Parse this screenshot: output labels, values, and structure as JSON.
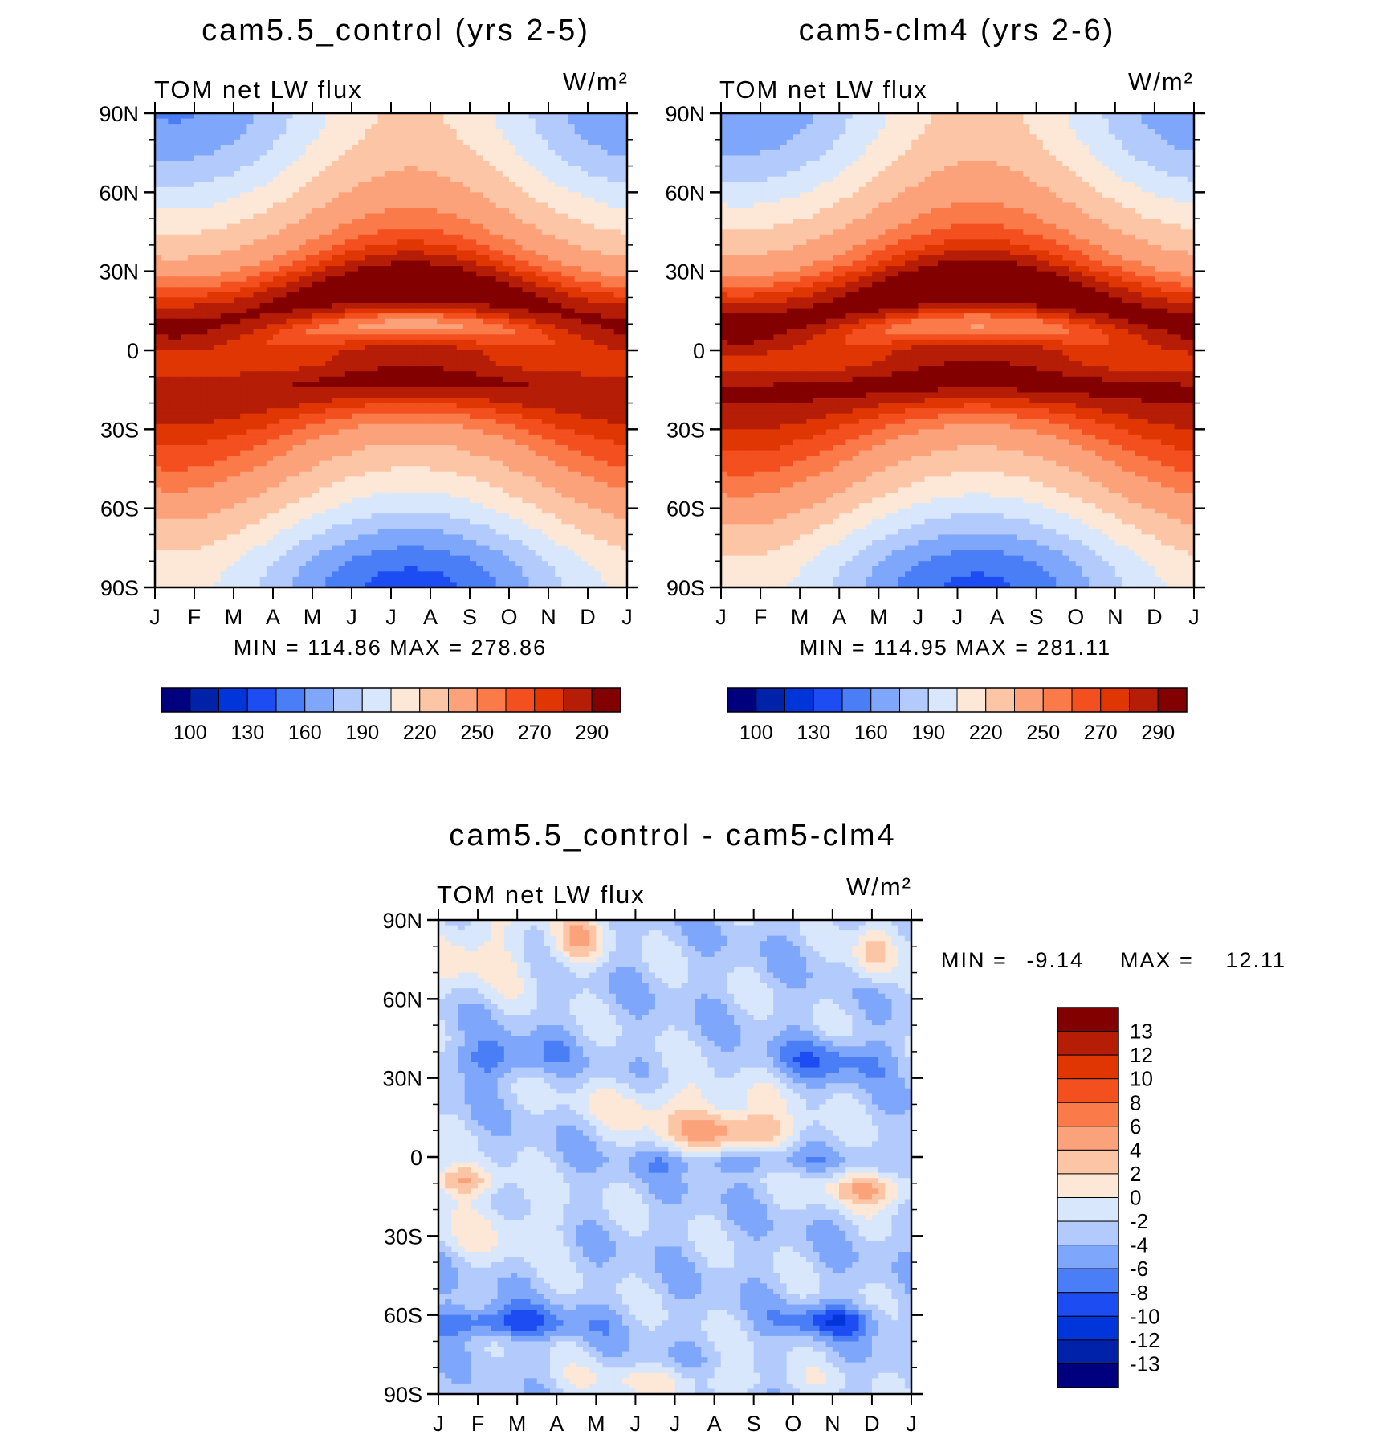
{
  "colors": {
    "seq14": [
      "#00007f",
      "#0022a8",
      "#0035d9",
      "#1c4cf2",
      "#4a7ef6",
      "#7ea6fb",
      "#b2cafc",
      "#d8e7fc",
      "#fde8d8",
      "#fcc6a6",
      "#fba27a",
      "#fa7a4a",
      "#f44f1e",
      "#e03604",
      "#b51d06",
      "#830000"
    ],
    "diff": [
      "#00007f",
      "#0022a8",
      "#0035d9",
      "#1c4cf2",
      "#4a7ef6",
      "#7ea6fb",
      "#b2cafc",
      "#d8e7fc",
      "#fde8d8",
      "#fcc6a6",
      "#fba27a",
      "#fa7a4a",
      "#f44f1e",
      "#e03604",
      "#b51d06",
      "#830000"
    ],
    "axis": "#000000",
    "text": "#000000"
  },
  "chart_data": [
    {
      "type": "heatmap",
      "id": "control",
      "title": "cam5.5_control (yrs 2-5)",
      "left_label": "TOM net LW flux",
      "units": "W/m²",
      "stats": "MIN = 114.86 MAX = 278.86",
      "x_ticks": [
        "J",
        "F",
        "M",
        "A",
        "M",
        "J",
        "J",
        "A",
        "S",
        "O",
        "N",
        "D",
        "J"
      ],
      "y_ticks": [
        "90N",
        "60N",
        "30N",
        "0",
        "30S",
        "60S",
        "90S"
      ],
      "y_values": [
        90,
        60,
        30,
        0,
        -30,
        -60,
        -90
      ],
      "colorbar_labels": [
        "100",
        "130",
        "160",
        "190",
        "220",
        "250",
        "270",
        "290"
      ],
      "levels": [
        100,
        115,
        130,
        145,
        160,
        175,
        190,
        205,
        220,
        235,
        250,
        260,
        270,
        280,
        290
      ],
      "month_range": [
        0,
        12
      ],
      "lat_range": [
        -90,
        90
      ]
    },
    {
      "type": "heatmap",
      "id": "clm4",
      "title": "cam5-clm4 (yrs 2-6)",
      "left_label": "TOM net LW flux",
      "units": "W/m²",
      "stats": "MIN = 114.95 MAX = 281.11",
      "x_ticks": [
        "J",
        "F",
        "M",
        "A",
        "M",
        "J",
        "J",
        "A",
        "S",
        "O",
        "N",
        "D",
        "J"
      ],
      "y_ticks": [
        "90N",
        "60N",
        "30N",
        "0",
        "30S",
        "60S",
        "90S"
      ],
      "y_values": [
        90,
        60,
        30,
        0,
        -30,
        -60,
        -90
      ],
      "colorbar_labels": [
        "100",
        "130",
        "160",
        "190",
        "220",
        "250",
        "270",
        "290"
      ],
      "levels": [
        100,
        115,
        130,
        145,
        160,
        175,
        190,
        205,
        220,
        235,
        250,
        260,
        270,
        280,
        290
      ],
      "month_range": [
        0,
        12
      ],
      "lat_range": [
        -90,
        90
      ]
    },
    {
      "type": "heatmap",
      "id": "diff",
      "title": "cam5.5_control - cam5-clm4",
      "left_label": "TOM net LW flux",
      "units": "W/m²",
      "stats_min_label": "MIN =",
      "stats_min": "-9.14",
      "stats_max_label": "MAX =",
      "stats_max": "12.11",
      "x_ticks": [
        "J",
        "F",
        "M",
        "A",
        "M",
        "J",
        "J",
        "A",
        "S",
        "O",
        "N",
        "D",
        "J"
      ],
      "y_ticks": [
        "90N",
        "60N",
        "30N",
        "0",
        "30S",
        "60S",
        "90S"
      ],
      "y_values": [
        90,
        60,
        30,
        0,
        -30,
        -60,
        -90
      ],
      "colorbar_labels": [
        "13",
        "12",
        "10",
        "8",
        "6",
        "4",
        "2",
        "0",
        "-2",
        "-4",
        "-6",
        "-8",
        "-10",
        "-12",
        "-13"
      ],
      "levels": [
        -13,
        -12,
        -10,
        -8,
        -6,
        -4,
        -2,
        0,
        2,
        4,
        6,
        8,
        10,
        12,
        13
      ],
      "month_range": [
        0,
        12
      ],
      "lat_range": [
        -90,
        90
      ]
    }
  ]
}
